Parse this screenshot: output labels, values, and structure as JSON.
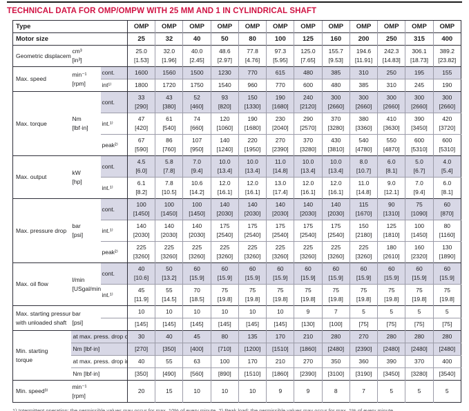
{
  "title": "TECHNICAL DATA FOR OMP/OMPW WITH 25 MM AND 1 IN CYLINDRICAL SHAFT",
  "colors": {
    "accent": "#d01243",
    "row_shade": "#d8d8e6",
    "border_dark": "#2e2e38",
    "border_light": "#9b9ba8"
  },
  "table": {
    "header": {
      "type_label": "Type",
      "type_values": [
        "OMP",
        "OMP",
        "OMP",
        "OMP",
        "OMP",
        "OMP",
        "OMP",
        "OMP",
        "OMP",
        "OMP",
        "OMP",
        "OMP"
      ],
      "size_label": "Motor size",
      "size_values": [
        "25",
        "32",
        "40",
        "50",
        "80",
        "100",
        "125",
        "160",
        "200",
        "250",
        "315",
        "400"
      ]
    },
    "sections": [
      {
        "name": "geometric-displacement",
        "label": [
          "Geometric displacement"
        ],
        "unit": [
          "cm³",
          "[in³]"
        ],
        "rows": [
          {
            "cond": "",
            "shaded": false,
            "lines": [
              [
                "25.0",
                "32.0",
                "40.0",
                "48.6",
                "77.8",
                "97.3",
                "125.0",
                "155.7",
                "194.6",
                "242.3",
                "306.1",
                "389.2"
              ],
              [
                "[1.53]",
                "[1.96]",
                "[2.45]",
                "[2.97]",
                "[4.76]",
                "[5.95]",
                "[7.65]",
                "[9.53]",
                "[11.91]",
                "[14.83]",
                "[18.73]",
                "[23.82]"
              ]
            ]
          }
        ]
      },
      {
        "name": "max-speed",
        "label": [
          "Max. speed"
        ],
        "unit": [
          "min⁻¹",
          "[rpm]"
        ],
        "rows": [
          {
            "cond": "cont.",
            "shaded": true,
            "lines": [
              [
                "1600",
                "1560",
                "1500",
                "1230",
                "770",
                "615",
                "480",
                "385",
                "310",
                "250",
                "195",
                "155"
              ]
            ]
          },
          {
            "cond": "int¹⁾",
            "shaded": false,
            "lines": [
              [
                "1800",
                "1720",
                "1750",
                "1540",
                "960",
                "770",
                "600",
                "480",
                "385",
                "310",
                "245",
                "190"
              ]
            ]
          }
        ]
      },
      {
        "name": "max-torque",
        "label": [
          "Max. torque"
        ],
        "unit": [
          "Nm",
          "[lbf·in]"
        ],
        "rows": [
          {
            "cond": "cont.",
            "shaded": true,
            "lines": [
              [
                "33",
                "43",
                "52",
                "93",
                "150",
                "190",
                "240",
                "300",
                "300",
                "300",
                "300",
                "300"
              ],
              [
                "[290]",
                "[380]",
                "[460]",
                "[820]",
                "[1330]",
                "[1680]",
                "[2120]",
                "[2660]",
                "[2660]",
                "[2660]",
                "[2660]",
                "[2660]"
              ]
            ]
          },
          {
            "cond": "int.¹⁾",
            "shaded": false,
            "lines": [
              [
                "47",
                "61",
                "74",
                "120",
                "190",
                "230",
                "290",
                "370",
                "380",
                "410",
                "390",
                "420"
              ],
              [
                "[420]",
                "[540]",
                "[660]",
                "[1060]",
                "[1680]",
                "[2040]",
                "[2570]",
                "[3280]",
                "[3360]",
                "[3630]",
                "[3450]",
                "[3720]"
              ]
            ]
          },
          {
            "cond": "peak²⁾",
            "shaded": false,
            "lines": [
              [
                "67",
                "86",
                "107",
                "140",
                "220",
                "270",
                "370",
                "430",
                "540",
                "550",
                "600",
                "600"
              ],
              [
                "[590]",
                "[760]",
                "[950]",
                "[1240]",
                "[1950]",
                "[2390]",
                "[3280]",
                "[3810]",
                "[4780]",
                "[4870]",
                "[5310]",
                "[5310]"
              ]
            ]
          }
        ]
      },
      {
        "name": "max-output",
        "label": [
          "Max. output"
        ],
        "unit": [
          "kW",
          "[hp]"
        ],
        "rows": [
          {
            "cond": "cont.",
            "shaded": true,
            "lines": [
              [
                "4.5",
                "5.8",
                "7.0",
                "10.0",
                "10.0",
                "11.0",
                "10.0",
                "10.0",
                "8.0",
                "6.0",
                "5.0",
                "4.0"
              ],
              [
                "[6.0]",
                "[7.8]",
                "[9.4]",
                "[13.4]",
                "[13.4]",
                "[14.8]",
                "[13.4]",
                "[13.4]",
                "[10.7]",
                "[8.1]",
                "[6.7]",
                "[5.4]"
              ]
            ]
          },
          {
            "cond": "int.¹⁾",
            "shaded": false,
            "lines": [
              [
                "6.1",
                "7.8",
                "10.6",
                "12.0",
                "12.0",
                "13.0",
                "12.0",
                "12.0",
                "11.0",
                "9.0",
                "7.0",
                "6.0"
              ],
              [
                "[8.2]",
                "[10.5]",
                "[14.2]",
                "[16.1]",
                "[16.1]",
                "[17.4]",
                "[16.1]",
                "[16.1]",
                "[14.8]",
                "[12.1]",
                "[9.4]",
                "[8.1]"
              ]
            ]
          }
        ]
      },
      {
        "name": "max-pressure-drop",
        "label": [
          "Max. pressure drop"
        ],
        "unit": [
          "bar",
          "[psi]"
        ],
        "rows": [
          {
            "cond": "cont.",
            "shaded": true,
            "lines": [
              [
                "100",
                "100",
                "100",
                "140",
                "140",
                "140",
                "140",
                "140",
                "115",
                "90",
                "75",
                "60"
              ],
              [
                "[1450]",
                "[1450]",
                "[1450]",
                "[2030]",
                "[2030]",
                "[2030]",
                "[2030]",
                "[2030]",
                "[1670]",
                "[1310]",
                "[1090]",
                "[870]"
              ]
            ]
          },
          {
            "cond": "int.¹⁾",
            "shaded": false,
            "lines": [
              [
                "140",
                "140",
                "140",
                "175",
                "175",
                "175",
                "175",
                "175",
                "150",
                "125",
                "100",
                "80"
              ],
              [
                "[2030]",
                "[2030]",
                "[2030]",
                "[2540]",
                "[2540]",
                "[2540]",
                "[2540]",
                "[2540]",
                "[2180]",
                "[1810]",
                "[1450]",
                "[1160]"
              ]
            ]
          },
          {
            "cond": "peak²⁾",
            "shaded": false,
            "lines": [
              [
                "225",
                "225",
                "225",
                "225",
                "225",
                "225",
                "225",
                "225",
                "225",
                "180",
                "160",
                "130"
              ],
              [
                "[3260]",
                "[3260]",
                "[3260]",
                "[3260]",
                "[3260]",
                "[3260]",
                "[3260]",
                "[3260]",
                "[3260]",
                "[2610]",
                "[2320]",
                "[1890]"
              ]
            ]
          }
        ]
      },
      {
        "name": "max-oil-flow",
        "label": [
          "Max. oil flow"
        ],
        "unit": [
          "l/min",
          "[USgal/min]"
        ],
        "rows": [
          {
            "cond": "cont.",
            "shaded": true,
            "lines": [
              [
                "40",
                "50",
                "60",
                "60",
                "60",
                "60",
                "60",
                "60",
                "60",
                "60",
                "60",
                "60"
              ],
              [
                "[10.6]",
                "[13.2]",
                "[15.9]",
                "[15.9]",
                "[15.9]",
                "[15.9]",
                "[15.9]",
                "[15.9]",
                "[15.9]",
                "[15.9]",
                "[15.9]",
                "[15.9]"
              ]
            ]
          },
          {
            "cond": "int.¹⁾",
            "shaded": false,
            "lines": [
              [
                "45",
                "55",
                "70",
                "75",
                "75",
                "75",
                "75",
                "75",
                "75",
                "75",
                "75",
                "75"
              ],
              [
                "[11.9]",
                "[14.5]",
                "[18.5]",
                "[19.8]",
                "[19.8]",
                "[19.8]",
                "[19.8]",
                "[19.8]",
                "[19.8]",
                "[19.8]",
                "[19.8]",
                "[19.8]"
              ]
            ]
          }
        ]
      },
      {
        "name": "max-starting-pressure",
        "label": [
          "Max. starting pressure",
          "with unloaded shaft"
        ],
        "unit": [
          "bar",
          "[psi]"
        ],
        "rows": [
          {
            "cond": "",
            "shaded": false,
            "lines": [
              [
                "10",
                "10",
                "10",
                "10",
                "10",
                "10",
                "9",
                "7",
                "5",
                "5",
                "5",
                "5"
              ]
            ]
          },
          {
            "cond": "",
            "shaded": false,
            "lines": [
              [
                "[145]",
                "[145]",
                "[145]",
                "[145]",
                "[145]",
                "[145]",
                "[130]",
                "[100]",
                "[75]",
                "[75]",
                "[75]",
                "[75]"
              ]
            ]
          }
        ]
      },
      {
        "name": "min-starting-torque",
        "label": [
          "Min. starting",
          "torque"
        ],
        "unit": null,
        "rows": [
          {
            "rowlabel": "at max. press. drop cont.",
            "shaded": true,
            "lines": [
              [
                "30",
                "40",
                "45",
                "80",
                "135",
                "170",
                "210",
                "280",
                "270",
                "280",
                "280",
                "280"
              ]
            ]
          },
          {
            "rowlabel": "Nm [lbf·in]",
            "shaded": true,
            "lines": [
              [
                "[270]",
                "[350]",
                "[400]",
                "[710]",
                "[1200]",
                "[1510]",
                "[1860]",
                "[2480]",
                "[2390]",
                "[2480]",
                "[2480]",
                "[2480]"
              ]
            ]
          },
          {
            "rowlabel": "at max. press. drop int.¹⁾",
            "shaded": false,
            "lines": [
              [
                "40",
                "55",
                "63",
                "100",
                "170",
                "210",
                "270",
                "350",
                "360",
                "390",
                "370",
                "400"
              ]
            ]
          },
          {
            "rowlabel": "Nm [lbf·in]",
            "shaded": false,
            "lines": [
              [
                "[350]",
                "[490]",
                "[560]",
                "[890]",
                "[1510]",
                "[1860]",
                "[2390]",
                "[3100]",
                "[3190]",
                "[3450]",
                "[3280]",
                "[3540]"
              ]
            ]
          }
        ]
      },
      {
        "name": "min-speed",
        "label": [
          "Min. speed³⁾"
        ],
        "unit": [
          "min⁻¹",
          "[rpm]"
        ],
        "rows": [
          {
            "cond": "",
            "shaded": false,
            "tall": true,
            "lines": [
              [
                "20",
                "15",
                "10",
                "10",
                "10",
                "9",
                "9",
                "8",
                "7",
                "5",
                "5",
                "5"
              ]
            ]
          }
        ]
      }
    ]
  },
  "footnote": "1) Intermittent operation: the permissible values may occur for max. 10% of every minute.   2) Peak load: the permissible values may occur for max. 1% of every minute."
}
